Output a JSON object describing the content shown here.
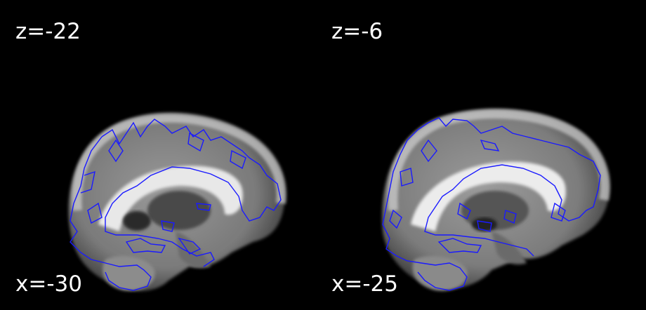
{
  "slices": [
    {
      "z_label": "z=-22",
      "x_label": "x=-30"
    },
    {
      "z_label": "z=-6",
      "x_label": "x=-25"
    }
  ],
  "colors": {
    "background": "#000000",
    "label_text": "#ffffff",
    "contour": "#1a1aff"
  }
}
